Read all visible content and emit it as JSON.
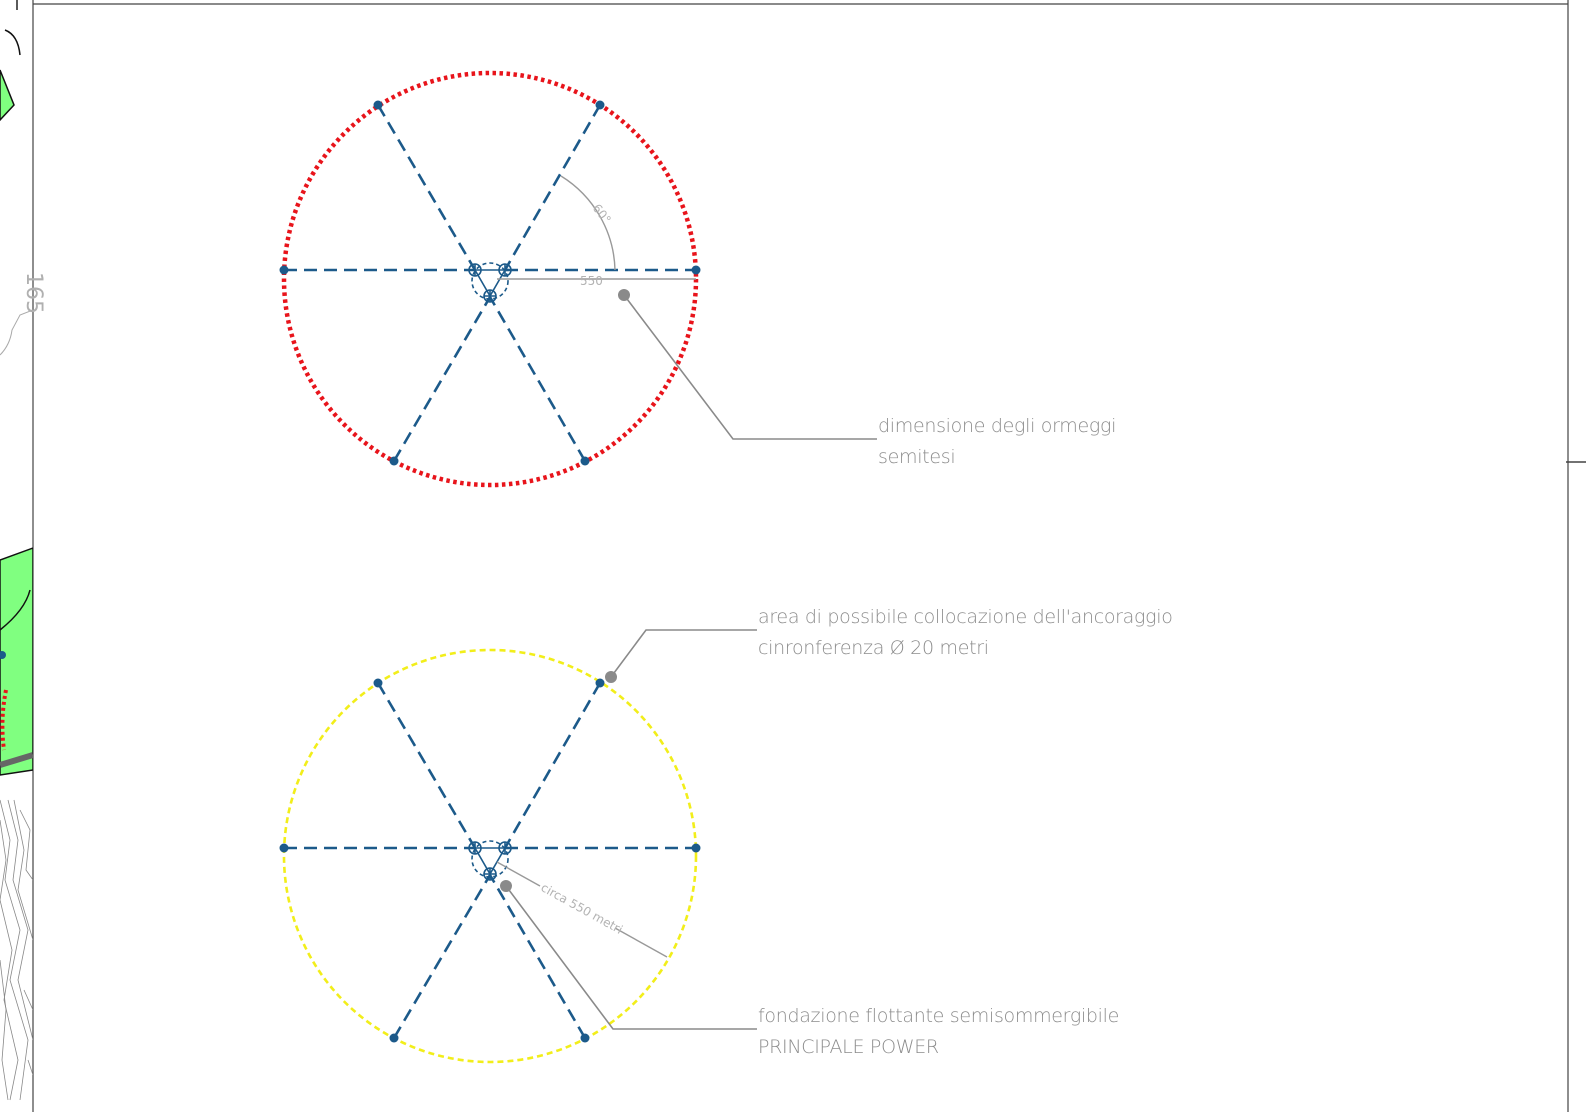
{
  "drawing": {
    "side_marker": "165",
    "top": {
      "angle_label": "60°",
      "radius_label": "550",
      "callout_line1": "dimensione degli ormeggi",
      "callout_line2": "semitesi",
      "circle_color": "#e8141b"
    },
    "bottom": {
      "area_line1": "area di possibile collocazione dell'ancoraggio",
      "area_line2": "cinronferenza Ø 20 metri",
      "radius_label": "circa 550 metri",
      "foundation_line1": "fondazione flottante semisommergibile",
      "foundation_line2": "PRINCIPALE POWER",
      "circle_color": "#f2ee1a"
    },
    "colors": {
      "mooring_line": "#1c5a8a",
      "leader": "#8a8a8a",
      "map_green": "#80ff80"
    }
  }
}
